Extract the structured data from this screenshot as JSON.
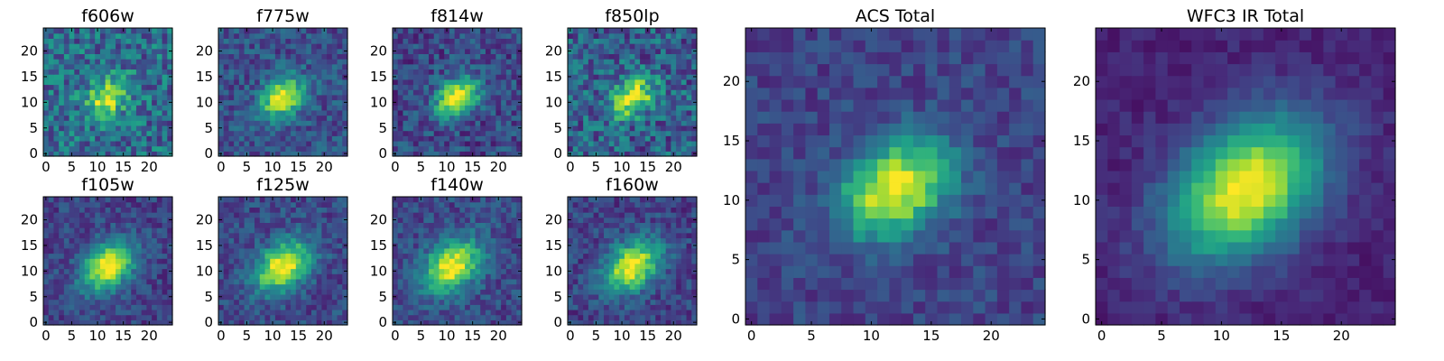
{
  "chart_data": [
    {
      "type": "heatmap",
      "title": "f606w",
      "grid_size": 25,
      "xlim": [
        -0.5,
        24.5
      ],
      "ylim": [
        -0.5,
        24.5
      ],
      "xticks": [
        0,
        5,
        10,
        15,
        20
      ],
      "yticks": [
        0,
        5,
        10,
        15,
        20
      ],
      "peak": [
        12,
        11
      ],
      "sigma": [
        3.0,
        2.2
      ],
      "angle_deg": 35,
      "background": 0.35,
      "noise": 0.22,
      "colormap": "viridis",
      "origin": "lower"
    },
    {
      "type": "heatmap",
      "title": "f775w",
      "grid_size": 25,
      "xlim": [
        -0.5,
        24.5
      ],
      "ylim": [
        -0.5,
        24.5
      ],
      "xticks": [
        0,
        5,
        10,
        15,
        20
      ],
      "yticks": [
        0,
        5,
        10,
        15,
        20
      ],
      "peak": [
        12,
        11
      ],
      "sigma": [
        3.2,
        2.3
      ],
      "angle_deg": 35,
      "background": 0.25,
      "noise": 0.15,
      "colormap": "viridis",
      "origin": "lower"
    },
    {
      "type": "heatmap",
      "title": "f814w",
      "grid_size": 25,
      "xlim": [
        -0.5,
        24.5
      ],
      "ylim": [
        -0.5,
        24.5
      ],
      "xticks": [
        0,
        5,
        10,
        15,
        20
      ],
      "yticks": [
        0,
        5,
        10,
        15,
        20
      ],
      "peak": [
        12,
        11
      ],
      "sigma": [
        3.2,
        2.3
      ],
      "angle_deg": 35,
      "background": 0.22,
      "noise": 0.16,
      "colormap": "viridis",
      "origin": "lower"
    },
    {
      "type": "heatmap",
      "title": "f850lp",
      "grid_size": 25,
      "xlim": [
        -0.5,
        24.5
      ],
      "ylim": [
        -0.5,
        24.5
      ],
      "xticks": [
        0,
        5,
        10,
        15,
        20
      ],
      "yticks": [
        0,
        5,
        10,
        15,
        20
      ],
      "peak": [
        12,
        11
      ],
      "sigma": [
        3.3,
        2.2
      ],
      "angle_deg": 35,
      "background": 0.3,
      "noise": 0.22,
      "colormap": "viridis",
      "origin": "lower"
    },
    {
      "type": "heatmap",
      "title": "f105w",
      "grid_size": 25,
      "xlim": [
        -0.5,
        24.5
      ],
      "ylim": [
        -0.5,
        24.5
      ],
      "xticks": [
        0,
        5,
        10,
        15,
        20
      ],
      "yticks": [
        0,
        5,
        10,
        15,
        20
      ],
      "peak": [
        12,
        11
      ],
      "sigma": [
        4.0,
        2.8
      ],
      "angle_deg": 40,
      "background": 0.2,
      "noise": 0.12,
      "colormap": "viridis",
      "origin": "lower"
    },
    {
      "type": "heatmap",
      "title": "f125w",
      "grid_size": 25,
      "xlim": [
        -0.5,
        24.5
      ],
      "ylim": [
        -0.5,
        24.5
      ],
      "xticks": [
        0,
        5,
        10,
        15,
        20
      ],
      "yticks": [
        0,
        5,
        10,
        15,
        20
      ],
      "peak": [
        12,
        11
      ],
      "sigma": [
        4.2,
        2.8
      ],
      "angle_deg": 40,
      "background": 0.22,
      "noise": 0.13,
      "colormap": "viridis",
      "origin": "lower"
    },
    {
      "type": "heatmap",
      "title": "f140w",
      "grid_size": 25,
      "xlim": [
        -0.5,
        24.5
      ],
      "ylim": [
        -0.5,
        24.5
      ],
      "xticks": [
        0,
        5,
        10,
        15,
        20
      ],
      "yticks": [
        0,
        5,
        10,
        15,
        20
      ],
      "peak": [
        11,
        11
      ],
      "sigma": [
        4.3,
        3.0
      ],
      "angle_deg": 40,
      "background": 0.22,
      "noise": 0.13,
      "colormap": "viridis",
      "origin": "lower"
    },
    {
      "type": "heatmap",
      "title": "f160w",
      "grid_size": 25,
      "xlim": [
        -0.5,
        24.5
      ],
      "ylim": [
        -0.5,
        24.5
      ],
      "xticks": [
        0,
        5,
        10,
        15,
        20
      ],
      "yticks": [
        0,
        5,
        10,
        15,
        20
      ],
      "peak": [
        12,
        11
      ],
      "sigma": [
        4.2,
        2.9
      ],
      "angle_deg": 40,
      "background": 0.2,
      "noise": 0.13,
      "colormap": "viridis",
      "origin": "lower"
    },
    {
      "type": "heatmap",
      "title": "ACS Total",
      "grid_size": 25,
      "xlim": [
        -0.5,
        24.5
      ],
      "ylim": [
        -0.5,
        24.5
      ],
      "xticks": [
        0,
        5,
        10,
        15,
        20
      ],
      "yticks": [
        0,
        5,
        10,
        15,
        20
      ],
      "peak": [
        12,
        11
      ],
      "sigma": [
        3.4,
        2.5
      ],
      "angle_deg": 35,
      "background": 0.2,
      "noise": 0.1,
      "colormap": "viridis",
      "origin": "lower"
    },
    {
      "type": "heatmap",
      "title": "WFC3 IR Total",
      "grid_size": 25,
      "xlim": [
        -0.5,
        24.5
      ],
      "ylim": [
        -0.5,
        24.5
      ],
      "xticks": [
        0,
        5,
        10,
        15,
        20
      ],
      "yticks": [
        0,
        5,
        10,
        15,
        20
      ],
      "peak": [
        12,
        11
      ],
      "sigma": [
        5.0,
        3.4
      ],
      "angle_deg": 40,
      "background": 0.1,
      "noise": 0.06,
      "colormap": "viridis",
      "origin": "lower"
    }
  ]
}
